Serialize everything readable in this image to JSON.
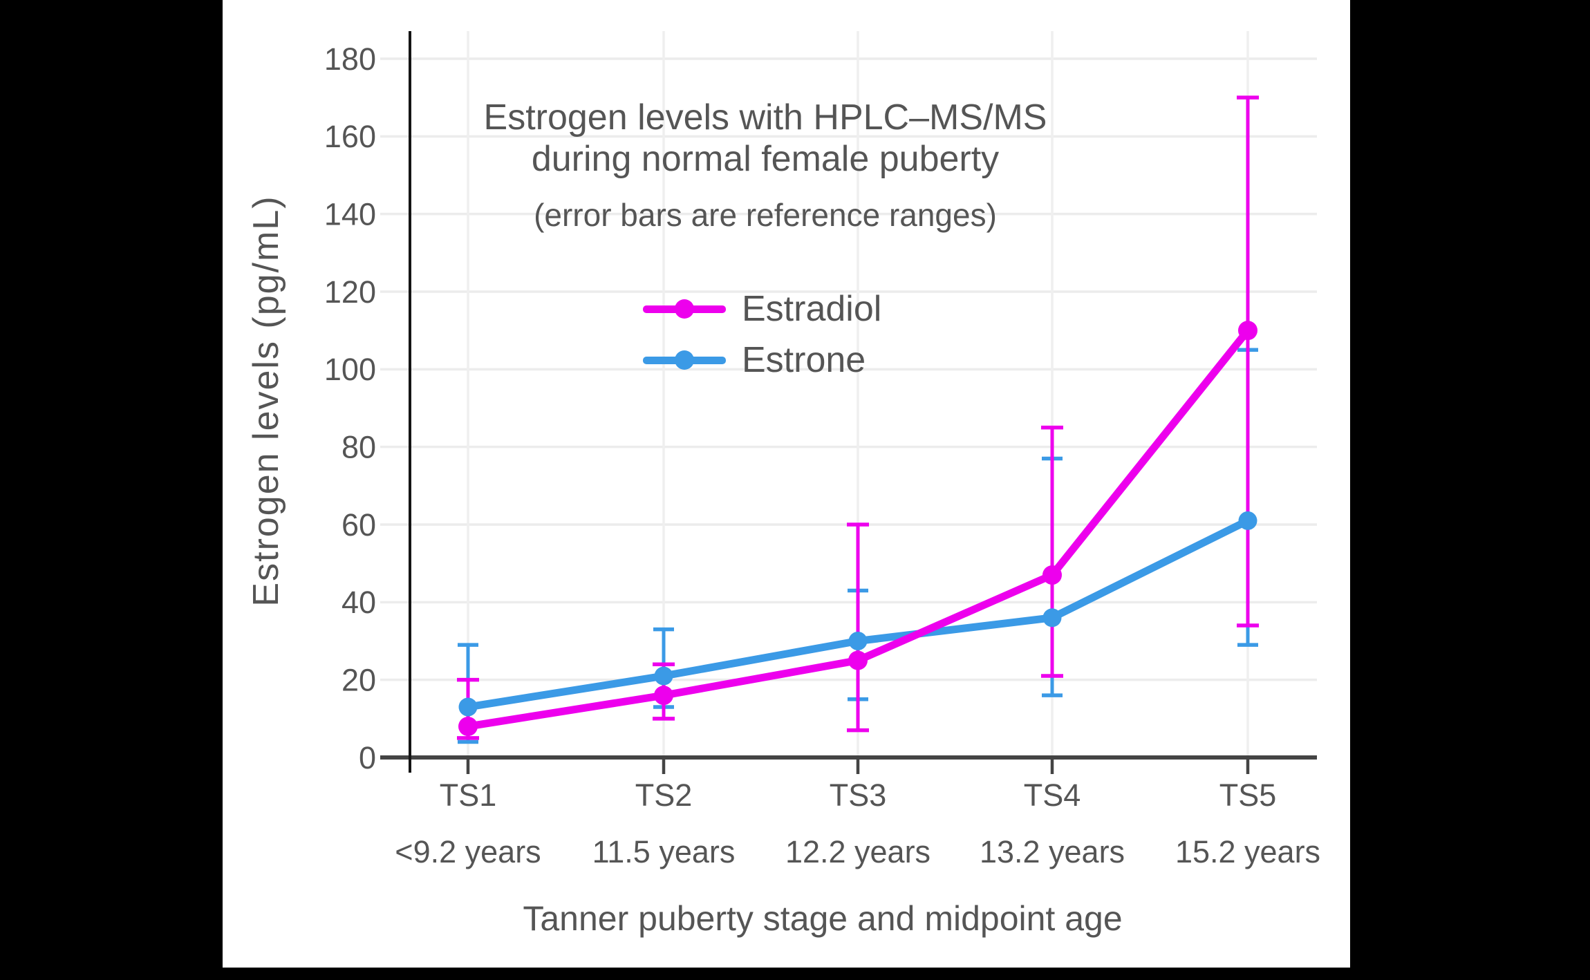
{
  "canvas": {
    "background": "#000000",
    "panel_background": "#ffffff",
    "text_color": "#555555",
    "grid_color": "#ececec",
    "axis_color": "#444444",
    "spine_color": "#151515"
  },
  "title": {
    "line1": "Estrogen levels with HPLC–MS/MS",
    "line2": "during normal female puberty",
    "subtitle": "(error bars are reference ranges)"
  },
  "legend": {
    "items": [
      {
        "label": "Estradiol",
        "color": "#ed00ed"
      },
      {
        "label": "Estrone",
        "color": "#3b9ae6"
      }
    ]
  },
  "axes": {
    "y_title": "Estrogen levels (pg/mL)",
    "x_title": "Tanner puberty stage and midpoint age",
    "y_tick_labels": [
      "0",
      "20",
      "40",
      "60",
      "80",
      "100",
      "120",
      "140",
      "160",
      "180"
    ],
    "x_tick_labels": [
      "TS1",
      "TS2",
      "TS3",
      "TS4",
      "TS5"
    ],
    "x_tick_sublabels": [
      "<9.2 years",
      "11.5 years",
      "12.2 years",
      "13.2 years",
      "15.2 years"
    ]
  },
  "chart_data": {
    "type": "line",
    "title": "Estrogen levels with HPLC–MS/MS during normal female puberty",
    "subtitle": "(error bars are reference ranges)",
    "xlabel": "Tanner puberty stage and midpoint age",
    "ylabel": "Estrogen levels (pg/mL)",
    "categories": [
      "TS1",
      "TS2",
      "TS3",
      "TS4",
      "TS5"
    ],
    "category_midpoint_ages": [
      "<9.2 years",
      "11.5 years",
      "12.2 years",
      "13.2 years",
      "15.2 years"
    ],
    "series": [
      {
        "name": "Estradiol",
        "color": "#ed00ed",
        "values": [
          8,
          16,
          25,
          47,
          110
        ],
        "error_low": [
          5,
          10,
          7,
          21,
          34
        ],
        "error_high": [
          20,
          24,
          60,
          85,
          170
        ]
      },
      {
        "name": "Estrone",
        "color": "#3b9ae6",
        "values": [
          13,
          21,
          30,
          36,
          61
        ],
        "error_low": [
          4,
          13,
          15,
          16,
          29
        ],
        "error_high": [
          29,
          33,
          43,
          77,
          105
        ]
      }
    ],
    "ylim": [
      0,
      180
    ],
    "ytick_step": 20,
    "grid": true,
    "legend_position": "upper-center-inside",
    "error_bars_meaning": "reference ranges"
  }
}
